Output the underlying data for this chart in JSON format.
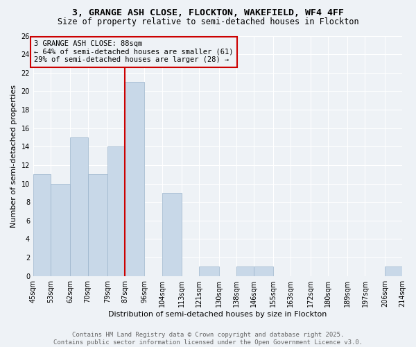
{
  "title": "3, GRANGE ASH CLOSE, FLOCKTON, WAKEFIELD, WF4 4FF",
  "subtitle": "Size of property relative to semi-detached houses in Flockton",
  "xlabel": "Distribution of semi-detached houses by size in Flockton",
  "ylabel": "Number of semi-detached properties",
  "bins": [
    45,
    53,
    62,
    70,
    79,
    87,
    96,
    104,
    113,
    121,
    130,
    138,
    146,
    155,
    163,
    172,
    180,
    189,
    197,
    206,
    214
  ],
  "counts": [
    11,
    10,
    15,
    11,
    14,
    21,
    0,
    9,
    0,
    1,
    0,
    1,
    1,
    0,
    0,
    0,
    0,
    0,
    0,
    1
  ],
  "bar_color": "#c8d8e8",
  "bar_edge_color": "#9ab4cc",
  "property_line_x": 87,
  "property_line_color": "#cc0000",
  "annotation_text": "3 GRANGE ASH CLOSE: 88sqm\n← 64% of semi-detached houses are smaller (61)\n29% of semi-detached houses are larger (28) →",
  "annotation_box_color": "#cc0000",
  "ylim": [
    0,
    26
  ],
  "yticks": [
    0,
    2,
    4,
    6,
    8,
    10,
    12,
    14,
    16,
    18,
    20,
    22,
    24,
    26
  ],
  "tick_labels": [
    "45sqm",
    "53sqm",
    "62sqm",
    "70sqm",
    "79sqm",
    "87sqm",
    "96sqm",
    "104sqm",
    "113sqm",
    "121sqm",
    "130sqm",
    "138sqm",
    "146sqm",
    "155sqm",
    "163sqm",
    "172sqm",
    "180sqm",
    "189sqm",
    "197sqm",
    "206sqm",
    "214sqm"
  ],
  "footer_text": "Contains HM Land Registry data © Crown copyright and database right 2025.\nContains public sector information licensed under the Open Government Licence v3.0.",
  "background_color": "#eef2f6",
  "grid_color": "#ffffff",
  "title_fontsize": 9.5,
  "subtitle_fontsize": 8.5,
  "axis_label_fontsize": 8,
  "tick_fontsize": 7,
  "annotation_fontsize": 7.5,
  "footer_fontsize": 6.5
}
